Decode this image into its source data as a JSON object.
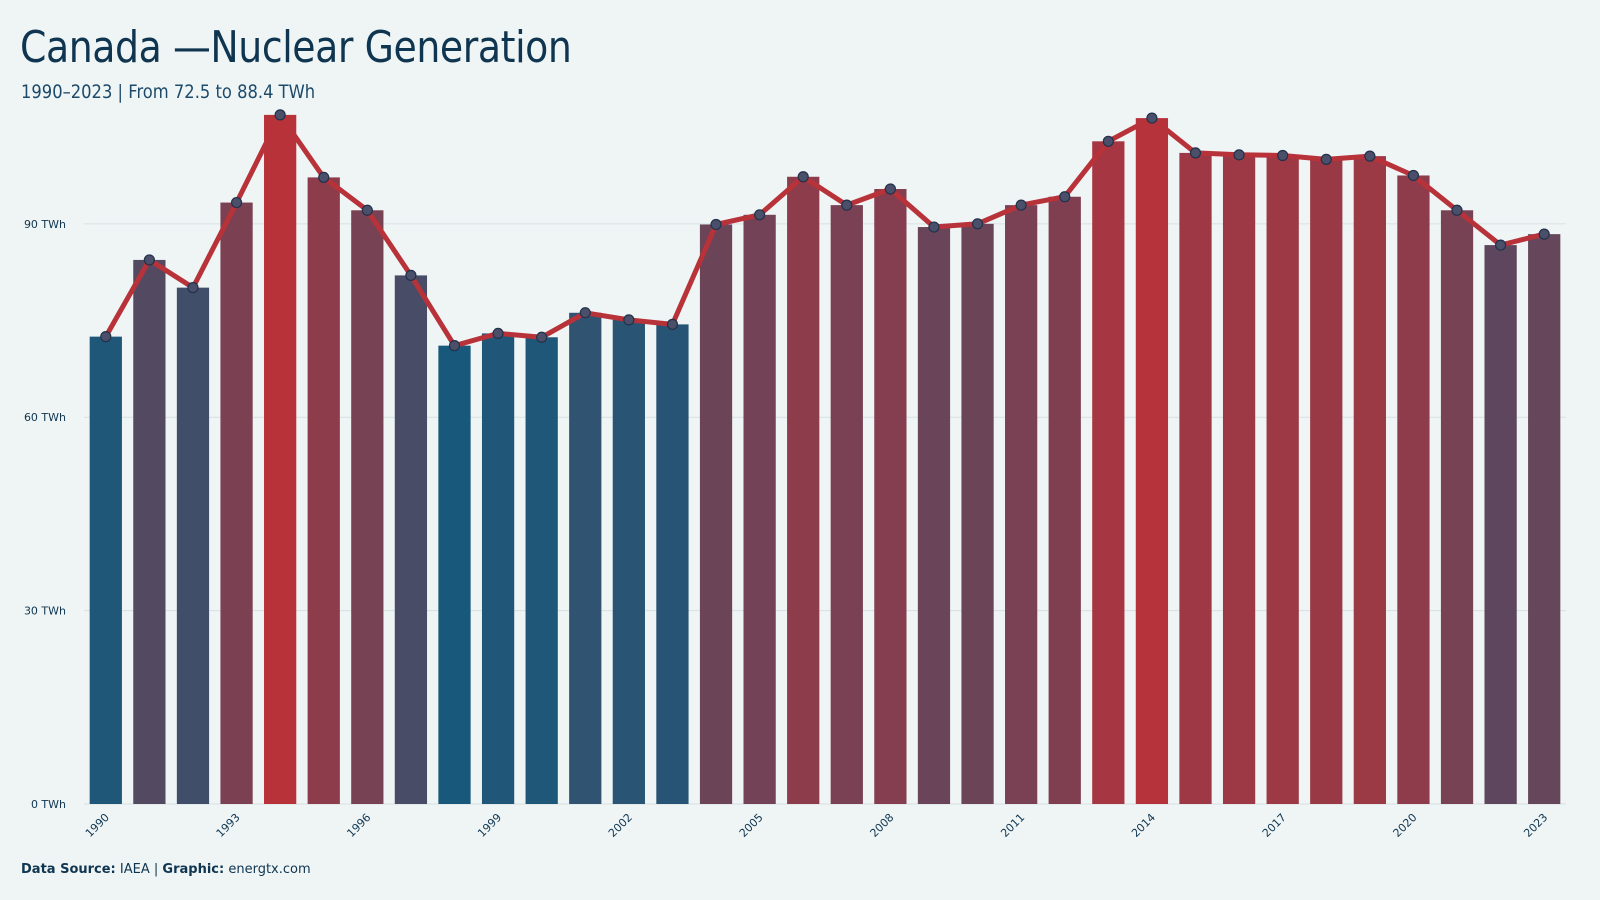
{
  "header": {
    "title": "Canada —Nuclear Generation",
    "subtitle": "1990–2023 | From 72.5 to 88.4 TWh"
  },
  "footer": {
    "source_label": "Data Source:",
    "source_value": "IAEA",
    "separator": "|",
    "graphic_label": "Graphic:",
    "graphic_value": "energtx.com"
  },
  "chart_data": {
    "type": "bar",
    "overlay": "line",
    "title": "Canada —Nuclear Generation",
    "subtitle": "1990–2023 | From 72.5 to 88.4 TWh",
    "xlabel": "",
    "ylabel": "",
    "unit": "TWh",
    "categories": [
      1990,
      1991,
      1992,
      1993,
      1994,
      1995,
      1996,
      1997,
      1998,
      1999,
      2000,
      2001,
      2002,
      2003,
      2004,
      2005,
      2006,
      2007,
      2008,
      2009,
      2010,
      2011,
      2012,
      2013,
      2014,
      2015,
      2016,
      2017,
      2018,
      2019,
      2020,
      2021,
      2022,
      2023
    ],
    "values": [
      72.5,
      84.4,
      80.1,
      93.3,
      106.9,
      97.2,
      92.1,
      82.0,
      71.1,
      73.0,
      72.4,
      76.2,
      75.1,
      74.4,
      89.9,
      91.4,
      97.3,
      92.9,
      95.4,
      89.5,
      90.0,
      92.9,
      94.2,
      102.8,
      106.4,
      101.0,
      100.7,
      100.6,
      100.0,
      100.5,
      97.5,
      92.1,
      86.7,
      88.4
    ],
    "x_tick_labels": [
      "1990",
      "1993",
      "1996",
      "1999",
      "2002",
      "2005",
      "2008",
      "2011",
      "2014",
      "2017",
      "2020",
      "2023"
    ],
    "y_ticks": [
      0,
      30,
      60,
      90
    ],
    "y_tick_labels": [
      "0 TWh",
      "30 TWh",
      "60 TWh",
      "90 TWh"
    ],
    "ylim": [
      0,
      112
    ],
    "grid": true,
    "colors": {
      "low": "#18587a",
      "high": "#b8323a",
      "line": "#b8323a",
      "marker_fill": "#4a4f6a",
      "marker_stroke": "#23314a",
      "grid": "#d6e0e4",
      "axis_text": "#0f3550",
      "background": "#eff5f5"
    }
  }
}
